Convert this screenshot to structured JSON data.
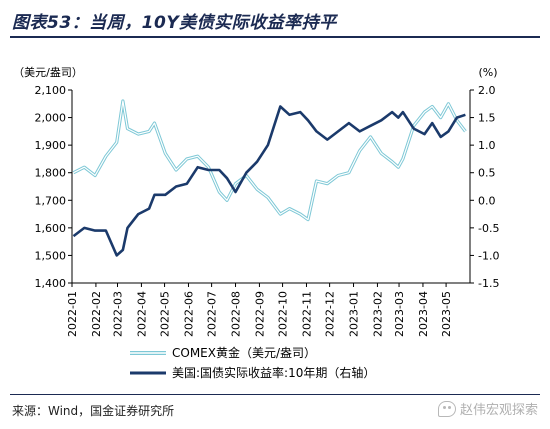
{
  "figure_title": "图表53：当周，10Y美债实际收益率持平",
  "source_note": "来源：Wind，国金证券研究所",
  "watermark": "赵伟宏观探索",
  "colors": {
    "gold": "#7ec8d6",
    "yield": "#1b3a6b",
    "axis": "#000000",
    "title": "#1b2a52"
  },
  "chart_data": {
    "type": "line",
    "y_left_unit": "（美元/盎司）",
    "y_right_unit": "(%)",
    "y_left_range": [
      1400,
      2100
    ],
    "y_right_range": [
      -1.5,
      2.0
    ],
    "y_left_ticks": [
      "2,100",
      "2,000",
      "1,900",
      "1,800",
      "1,700",
      "1,600",
      "1,500",
      "1,400"
    ],
    "y_right_ticks": [
      "2.0",
      "1.5",
      "1.0",
      "0.5",
      "0.0",
      "-0.5",
      "-1.0",
      "-1.5"
    ],
    "x_ticks": [
      "2022-01",
      "2022-02",
      "2022-03",
      "2022-04",
      "2022-05",
      "2022-06",
      "2022-07",
      "2022-08",
      "2022-09",
      "2022-10",
      "2022-11",
      "2022-12",
      "2023-01",
      "2023-02",
      "2023-03",
      "2023-04",
      "2023-05"
    ],
    "grid": false,
    "legend_position": "bottom",
    "series": [
      {
        "name": "COMEX黄金（美元/盎司）",
        "axis": "left",
        "x": [
          "2022-01-03",
          "2022-01-17",
          "2022-01-31",
          "2022-02-14",
          "2022-02-28",
          "2022-03-08",
          "2022-03-14",
          "2022-03-28",
          "2022-04-11",
          "2022-04-18",
          "2022-05-02",
          "2022-05-16",
          "2022-05-30",
          "2022-06-13",
          "2022-06-27",
          "2022-07-11",
          "2022-07-21",
          "2022-08-01",
          "2022-08-15",
          "2022-08-29",
          "2022-09-12",
          "2022-09-28",
          "2022-10-10",
          "2022-10-24",
          "2022-11-03",
          "2022-11-14",
          "2022-11-28",
          "2022-12-12",
          "2022-12-26",
          "2023-01-09",
          "2023-01-23",
          "2023-02-06",
          "2023-02-20",
          "2023-02-28",
          "2023-03-06",
          "2023-03-20",
          "2023-04-03",
          "2023-04-13",
          "2023-04-24",
          "2023-05-04",
          "2023-05-15",
          "2023-05-26"
        ],
        "values": [
          1800,
          1820,
          1790,
          1860,
          1910,
          2060,
          1960,
          1940,
          1950,
          1980,
          1870,
          1810,
          1850,
          1860,
          1820,
          1730,
          1700,
          1760,
          1790,
          1740,
          1710,
          1650,
          1670,
          1650,
          1630,
          1770,
          1760,
          1790,
          1800,
          1880,
          1930,
          1870,
          1840,
          1820,
          1850,
          1970,
          2020,
          2040,
          2000,
          2050,
          1990,
          1950
        ]
      },
      {
        "name": "美国:国债实际收益率:10年期（右轴）",
        "axis": "right",
        "x": [
          "2022-01-03",
          "2022-01-17",
          "2022-01-31",
          "2022-02-14",
          "2022-02-28",
          "2022-03-08",
          "2022-03-14",
          "2022-03-28",
          "2022-04-11",
          "2022-04-18",
          "2022-05-02",
          "2022-05-16",
          "2022-05-30",
          "2022-06-13",
          "2022-06-27",
          "2022-07-11",
          "2022-07-21",
          "2022-08-01",
          "2022-08-15",
          "2022-08-29",
          "2022-09-12",
          "2022-09-28",
          "2022-10-10",
          "2022-10-24",
          "2022-11-03",
          "2022-11-14",
          "2022-11-28",
          "2022-12-12",
          "2022-12-26",
          "2023-01-09",
          "2023-01-23",
          "2023-02-06",
          "2023-02-20",
          "2023-02-28",
          "2023-03-06",
          "2023-03-20",
          "2023-04-03",
          "2023-04-13",
          "2023-04-24",
          "2023-05-04",
          "2023-05-15",
          "2023-05-26"
        ],
        "values": [
          -0.65,
          -0.5,
          -0.55,
          -0.55,
          -1.0,
          -0.9,
          -0.5,
          -0.25,
          -0.15,
          0.1,
          0.1,
          0.25,
          0.3,
          0.6,
          0.55,
          0.55,
          0.4,
          0.15,
          0.5,
          0.7,
          1.0,
          1.7,
          1.55,
          1.6,
          1.45,
          1.25,
          1.1,
          1.25,
          1.4,
          1.25,
          1.35,
          1.45,
          1.6,
          1.5,
          1.6,
          1.3,
          1.2,
          1.4,
          1.15,
          1.25,
          1.5,
          1.55
        ]
      }
    ]
  }
}
